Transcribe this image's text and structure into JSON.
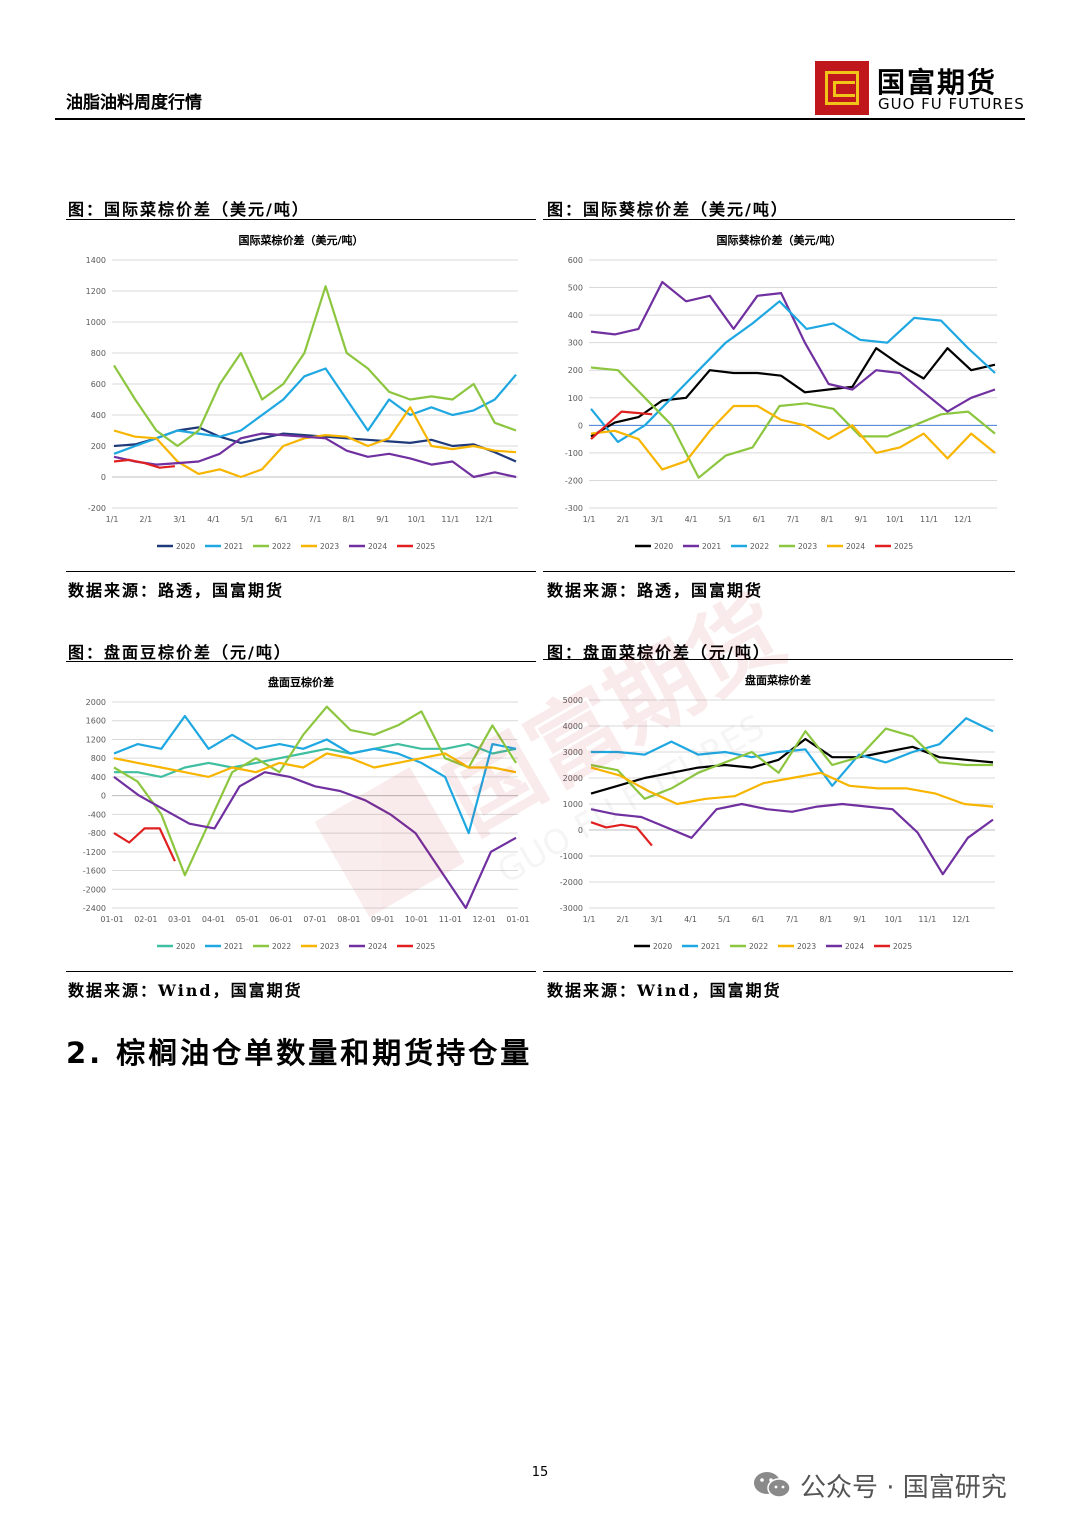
{
  "header": {
    "title": "油脂油料周度行情",
    "logo_cn": "国富期货",
    "logo_en": "GUO FU FUTURES",
    "colors": {
      "logo_red": "#c0171c",
      "logo_gold": "#f0c419"
    }
  },
  "panels": [
    {
      "title": "图：国际菜棕价差（美元/吨）",
      "source": "数据来源：路透，国富期货"
    },
    {
      "title": "图：国际葵棕价差（美元/吨）",
      "source": "数据来源：路透，国富期货"
    },
    {
      "title": "图：盘面豆棕价差（元/吨）",
      "source": "数据来源：Wind，国富期货"
    },
    {
      "title": "图：盘面菜棕价差（元/吨）",
      "source": "数据来源：Wind，国富期货"
    }
  ],
  "series_colors": {
    "2020": "#1f3a7a",
    "2021": "#1ea7e1",
    "2022": "#8cc63f",
    "2023": "#f7b500",
    "2024": "#7030a0",
    "2025": "#e02020"
  },
  "chart_data": [
    {
      "type": "line",
      "title": "国际菜棕价差（美元/吨）",
      "x_ticks": [
        "1/1",
        "2/1",
        "3/1",
        "4/1",
        "5/1",
        "6/1",
        "7/1",
        "8/1",
        "9/1",
        "10/1",
        "11/1",
        "12/1"
      ],
      "ylim": [
        -200,
        1400
      ],
      "y_ticks": [
        -200,
        0,
        200,
        400,
        600,
        800,
        1000,
        1200,
        1400
      ],
      "series": [
        {
          "name": "2020",
          "color": "#1f3a7a",
          "values": [
            200,
            210,
            250,
            300,
            320,
            260,
            220,
            250,
            280,
            270,
            260,
            250,
            240,
            230,
            220,
            240,
            200,
            210,
            160,
            100
          ]
        },
        {
          "name": "2021",
          "color": "#1ea7e1",
          "values": [
            150,
            200,
            250,
            300,
            280,
            260,
            300,
            400,
            500,
            650,
            700,
            500,
            300,
            500,
            400,
            450,
            400,
            430,
            500,
            660
          ]
        },
        {
          "name": "2022",
          "color": "#8cc63f",
          "values": [
            720,
            500,
            300,
            200,
            300,
            600,
            800,
            500,
            600,
            800,
            1230,
            800,
            700,
            550,
            500,
            520,
            500,
            600,
            350,
            300
          ]
        },
        {
          "name": "2023",
          "color": "#f7b500",
          "values": [
            300,
            260,
            250,
            100,
            20,
            50,
            0,
            50,
            200,
            250,
            270,
            260,
            200,
            250,
            450,
            200,
            180,
            200,
            170,
            160
          ]
        },
        {
          "name": "2024",
          "color": "#7030a0",
          "values": [
            130,
            100,
            80,
            90,
            100,
            150,
            250,
            280,
            270,
            260,
            250,
            170,
            130,
            150,
            120,
            80,
            100,
            0,
            30,
            0
          ]
        },
        {
          "name": "2025",
          "color": "#e02020",
          "values": [
            100,
            110,
            90,
            60,
            70
          ]
        }
      ]
    },
    {
      "type": "line",
      "title": "国际葵棕价差（美元/吨）",
      "x_ticks": [
        "1/1",
        "2/1",
        "3/1",
        "4/1",
        "5/1",
        "6/1",
        "7/1",
        "8/1",
        "9/1",
        "10/1",
        "11/1",
        "12/1"
      ],
      "ylim": [
        -300,
        600
      ],
      "y_ticks": [
        -300,
        -200,
        -100,
        0,
        100,
        200,
        300,
        400,
        500,
        600
      ],
      "series": [
        {
          "name": "2020",
          "color": "#000000",
          "values": [
            -40,
            10,
            30,
            90,
            100,
            200,
            190,
            190,
            180,
            120,
            130,
            140,
            280,
            220,
            170,
            280,
            200,
            220
          ]
        },
        {
          "name": "2021",
          "color": "#7030a0",
          "values": [
            340,
            330,
            350,
            520,
            450,
            470,
            350,
            470,
            480,
            300,
            150,
            130,
            200,
            190,
            120,
            50,
            100,
            130
          ]
        },
        {
          "name": "2022",
          "color": "#1ea7e1",
          "values": [
            60,
            -60,
            0,
            100,
            200,
            300,
            370,
            450,
            350,
            370,
            310,
            300,
            390,
            380,
            280,
            190
          ]
        },
        {
          "name": "2023",
          "color": "#8cc63f",
          "values": [
            210,
            200,
            100,
            0,
            -190,
            -110,
            -80,
            70,
            80,
            60,
            -40,
            -40,
            0,
            40,
            50,
            -30
          ]
        },
        {
          "name": "2024",
          "color": "#f7b500",
          "values": [
            -30,
            -20,
            -50,
            -160,
            -130,
            -20,
            70,
            70,
            20,
            0,
            -50,
            0,
            -100,
            -80,
            -30,
            -120,
            -30,
            -100
          ]
        },
        {
          "name": "2025",
          "color": "#e02020",
          "values": [
            -50,
            50,
            40
          ]
        }
      ]
    },
    {
      "type": "line",
      "title": "盘面豆棕价差",
      "x_ticks": [
        "01-01",
        "02-01",
        "03-01",
        "04-01",
        "05-01",
        "06-01",
        "07-01",
        "08-01",
        "09-01",
        "10-01",
        "11-01",
        "12-01",
        "01-01"
      ],
      "ylim": [
        -2400,
        2000
      ],
      "y_ticks": [
        -2400,
        -2000,
        -1600,
        -1200,
        -800,
        -400,
        0,
        400,
        800,
        1200,
        1600,
        2000
      ],
      "series": [
        {
          "name": "2020",
          "color": "#3fbfa0",
          "values": [
            500,
            500,
            400,
            600,
            700,
            600,
            700,
            800,
            900,
            1000,
            900,
            1000,
            1100,
            1000,
            1000,
            1100,
            900,
            1000
          ]
        },
        {
          "name": "2021",
          "color": "#1ea7e1",
          "values": [
            900,
            1100,
            1000,
            1700,
            1000,
            1300,
            1000,
            1100,
            1000,
            1200,
            900,
            1000,
            900,
            700,
            400,
            -800,
            1100,
            1000
          ]
        },
        {
          "name": "2022",
          "color": "#8cc63f",
          "values": [
            600,
            300,
            -400,
            -1700,
            -600,
            500,
            800,
            500,
            1300,
            1900,
            1400,
            1300,
            1500,
            1800,
            800,
            600,
            1500,
            700
          ]
        },
        {
          "name": "2023",
          "color": "#f7b500",
          "values": [
            800,
            700,
            600,
            500,
            400,
            600,
            500,
            700,
            600,
            900,
            800,
            600,
            700,
            800,
            900,
            600,
            600,
            500
          ]
        },
        {
          "name": "2024",
          "color": "#7030a0",
          "values": [
            400,
            0,
            -300,
            -600,
            -700,
            200,
            500,
            400,
            200,
            100,
            -100,
            -400,
            -800,
            -1600,
            -2400,
            -1200,
            -900
          ]
        },
        {
          "name": "2025",
          "color": "#e02020",
          "values": [
            -800,
            -1000,
            -700,
            -700,
            -1400
          ]
        }
      ]
    },
    {
      "type": "line",
      "title": "盘面菜棕价差",
      "x_ticks": [
        "1/1",
        "2/1",
        "3/1",
        "4/1",
        "5/1",
        "6/1",
        "7/1",
        "8/1",
        "9/1",
        "10/1",
        "11/1",
        "12/1"
      ],
      "ylim": [
        -3000,
        5000
      ],
      "y_ticks": [
        -3000,
        -2000,
        -1000,
        0,
        1000,
        2000,
        3000,
        4000,
        5000
      ],
      "series": [
        {
          "name": "2020",
          "color": "#000000",
          "values": [
            1400,
            1700,
            2000,
            2200,
            2400,
            2500,
            2400,
            2700,
            3500,
            2800,
            2800,
            3000,
            3200,
            2800,
            2700,
            2600
          ]
        },
        {
          "name": "2021",
          "color": "#1ea7e1",
          "values": [
            3000,
            3000,
            2900,
            3400,
            2900,
            3000,
            2800,
            3000,
            3100,
            1700,
            2900,
            2600,
            3000,
            3300,
            4300,
            3800
          ]
        },
        {
          "name": "2022",
          "color": "#8cc63f",
          "values": [
            2500,
            2300,
            1200,
            1600,
            2200,
            2600,
            3000,
            2200,
            3800,
            2500,
            2800,
            3900,
            3600,
            2600,
            2500,
            2500
          ]
        },
        {
          "name": "2023",
          "color": "#f7b500",
          "values": [
            2400,
            2100,
            1500,
            1000,
            1200,
            1300,
            1800,
            2000,
            2200,
            1700,
            1600,
            1600,
            1400,
            1000,
            900
          ]
        },
        {
          "name": "2024",
          "color": "#7030a0",
          "values": [
            800,
            600,
            500,
            100,
            -300,
            800,
            1000,
            800,
            700,
            900,
            1000,
            900,
            800,
            -100,
            -1700,
            -300,
            400
          ]
        },
        {
          "name": "2025",
          "color": "#e02020",
          "values": [
            300,
            100,
            200,
            100,
            -600
          ]
        }
      ]
    }
  ],
  "section_heading": "2. 棕榈油仓单数量和期货持仓量",
  "page_number": "15",
  "footer_wechat": "公众号 · 国富研究",
  "watermark": {
    "cn": "国富期货",
    "en": "GUO FU FUTURES"
  }
}
